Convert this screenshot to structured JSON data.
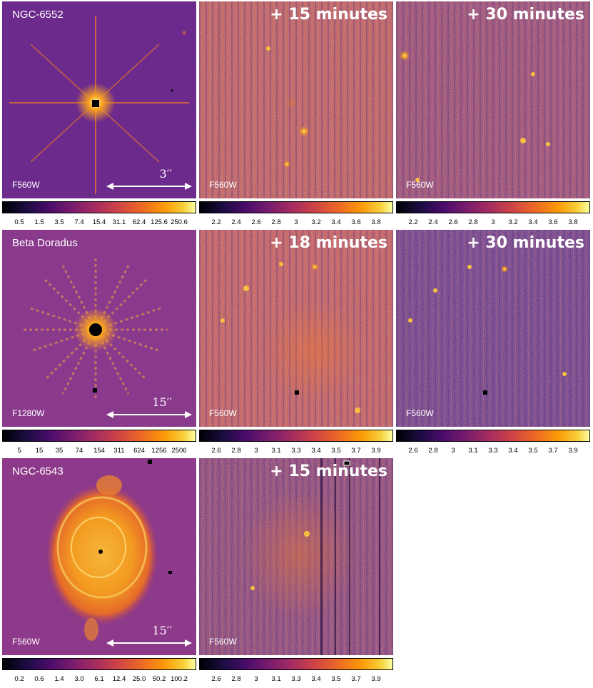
{
  "rows": [
    {
      "target": "NGC-6552",
      "reference": {
        "filter": "F560W",
        "scale_label": "3′′",
        "colorbar_ticks": [
          "0.5",
          "1.5",
          "3.5",
          "7.4",
          "15.4",
          "31.1",
          "62.4",
          "125.6",
          "250.6"
        ]
      },
      "followups": [
        {
          "delay": "+ 15 minutes",
          "filter": "F560W",
          "colorbar_ticks": [
            "2.2",
            "2.4",
            "2.6",
            "2.8",
            "3",
            "3.2",
            "3.4",
            "3.6",
            "3.8"
          ]
        },
        {
          "delay": "+ 30 minutes",
          "filter": "F560W",
          "colorbar_ticks": [
            "2.2",
            "2.4",
            "2.6",
            "2.8",
            "3",
            "3.2",
            "3.4",
            "3.6",
            "3.8"
          ]
        }
      ]
    },
    {
      "target": "Beta Doradus",
      "reference": {
        "filter": "F1280W",
        "scale_label": "15′′",
        "colorbar_ticks": [
          "5",
          "15",
          "35",
          "74",
          "154",
          "311",
          "624",
          "1256",
          "2506"
        ]
      },
      "followups": [
        {
          "delay": "+ 18 minutes",
          "filter": "F560W",
          "colorbar_ticks": [
            "2.6",
            "2.8",
            "3",
            "3.1",
            "3.3",
            "3.4",
            "3.5",
            "3.7",
            "3.9"
          ]
        },
        {
          "delay": "+ 30 minutes",
          "filter": "F560W",
          "colorbar_ticks": [
            "2.6",
            "2.8",
            "3",
            "3.1",
            "3.3",
            "3.4",
            "3.5",
            "3.7",
            "3.9"
          ]
        }
      ]
    },
    {
      "target": "NGC-6543",
      "reference": {
        "filter": "F560W",
        "scale_label": "15′′",
        "colorbar_ticks": [
          "0.2",
          "0.6",
          "1.4",
          "3.0",
          "6.1",
          "12.4",
          "25.0",
          "50.2",
          "100.2"
        ]
      },
      "followups": [
        {
          "delay": "+ 15 minutes",
          "filter": "F560W",
          "colorbar_ticks": [
            "2.6",
            "2.8",
            "3",
            "3.1",
            "3.3",
            "3.4",
            "3.5",
            "3.7",
            "3.9"
          ]
        }
      ]
    }
  ],
  "colormap": "inferno"
}
